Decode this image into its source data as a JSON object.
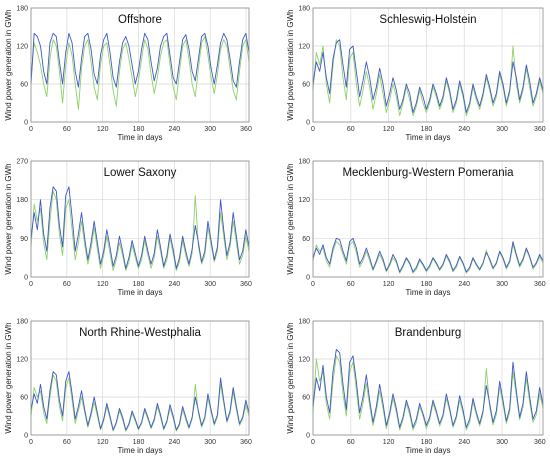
{
  "colors": {
    "series_a": "#3f57c9",
    "series_b": "#8fd16a",
    "series_c": "#e06a6a",
    "grid": "#d9d9d9",
    "axis": "#8c8c8c"
  },
  "chart_data": [
    {
      "type": "line",
      "title": "Offshore",
      "xlabel": "Time in days",
      "ylabel": "Wind power generation in GWh",
      "xlim": [
        0,
        365
      ],
      "ylim": [
        0,
        180
      ],
      "xticks": [
        "0",
        "60",
        "120",
        "180",
        "240",
        "300",
        "360"
      ],
      "yticks": [
        "0",
        "60",
        "120",
        "180"
      ],
      "grid": true,
      "series": [
        {
          "color": "#3f57c9",
          "values": [
            60,
            140,
            135,
            120,
            80,
            60,
            125,
            140,
            135,
            95,
            60,
            110,
            140,
            125,
            80,
            55,
            100,
            135,
            140,
            115,
            75,
            60,
            105,
            130,
            140,
            110,
            70,
            55,
            95,
            125,
            135,
            120,
            90,
            60,
            80,
            115,
            140,
            130,
            95,
            65,
            85,
            120,
            135,
            140,
            105,
            70,
            60,
            95,
            130,
            138,
            115,
            80,
            65,
            100,
            135,
            140,
            120,
            85,
            60,
            90,
            125,
            140,
            130,
            100,
            65,
            55,
            95,
            130,
            140,
            110
          ]
        },
        {
          "color": "#8fd16a",
          "values": [
            70,
            125,
            110,
            90,
            60,
            40,
            100,
            130,
            120,
            80,
            30,
            90,
            125,
            105,
            60,
            20,
            85,
            120,
            130,
            95,
            55,
            35,
            90,
            120,
            125,
            90,
            50,
            25,
            80,
            115,
            125,
            100,
            70,
            40,
            65,
            100,
            130,
            115,
            75,
            45,
            70,
            105,
            125,
            130,
            90,
            55,
            35,
            80,
            120,
            130,
            100,
            60,
            40,
            85,
            125,
            135,
            105,
            70,
            45,
            75,
            115,
            130,
            120,
            85,
            50,
            35,
            80,
            120,
            130,
            95
          ]
        }
      ]
    },
    {
      "type": "line",
      "title": "Schleswig-Holstein",
      "xlabel": "Time in days",
      "ylabel": "Wind power generation in GWh",
      "xlim": [
        0,
        365
      ],
      "ylim": [
        0,
        180
      ],
      "xticks": [
        "0",
        "60",
        "120",
        "180",
        "240",
        "300",
        "360"
      ],
      "yticks": [
        "0",
        "60",
        "120",
        "180"
      ],
      "grid": true,
      "series": [
        {
          "color": "#3f57c9",
          "values": [
            60,
            95,
            80,
            110,
            70,
            45,
            100,
            125,
            130,
            90,
            55,
            115,
            120,
            80,
            40,
            65,
            95,
            70,
            35,
            55,
            85,
            60,
            25,
            45,
            70,
            50,
            20,
            35,
            60,
            45,
            15,
            30,
            55,
            40,
            20,
            35,
            60,
            45,
            25,
            40,
            70,
            50,
            20,
            35,
            65,
            45,
            15,
            30,
            60,
            40,
            25,
            45,
            75,
            55,
            30,
            45,
            80,
            60,
            30,
            50,
            95,
            70,
            35,
            55,
            90,
            65,
            30,
            45,
            70,
            50
          ]
        },
        {
          "color": "#8fd16a",
          "values": [
            50,
            110,
            90,
            120,
            60,
            30,
            90,
            130,
            120,
            70,
            35,
            100,
            110,
            60,
            25,
            50,
            80,
            55,
            20,
            45,
            75,
            45,
            15,
            35,
            60,
            40,
            10,
            30,
            55,
            35,
            10,
            25,
            50,
            30,
            15,
            30,
            55,
            40,
            20,
            35,
            65,
            45,
            15,
            30,
            60,
            40,
            10,
            25,
            55,
            35,
            20,
            40,
            70,
            50,
            25,
            40,
            75,
            55,
            25,
            45,
            120,
            60,
            30,
            50,
            85,
            55,
            25,
            40,
            65,
            45
          ]
        }
      ]
    },
    {
      "type": "line",
      "title": "Lower Saxony",
      "xlabel": "Time in days",
      "ylabel": "Wind power generation in GWh",
      "xlim": [
        0,
        365
      ],
      "ylim": [
        0,
        270
      ],
      "xticks": [
        "0",
        "60",
        "120",
        "180",
        "240",
        "300",
        "360"
      ],
      "yticks": [
        "0",
        "90",
        "180",
        "270"
      ],
      "grid": true,
      "series": [
        {
          "color": "#3f57c9",
          "values": [
            90,
            150,
            110,
            180,
            100,
            60,
            160,
            210,
            200,
            120,
            70,
            190,
            210,
            140,
            60,
            100,
            150,
            90,
            40,
            80,
            130,
            80,
            30,
            60,
            110,
            70,
            25,
            50,
            95,
            60,
            20,
            45,
            85,
            55,
            25,
            50,
            95,
            60,
            30,
            55,
            110,
            70,
            25,
            50,
            100,
            65,
            20,
            45,
            95,
            60,
            30,
            65,
            120,
            80,
            35,
            60,
            130,
            85,
            40,
            70,
            180,
            110,
            50,
            80,
            150,
            95,
            40,
            60,
            110,
            70
          ]
        },
        {
          "color": "#8fd16a",
          "values": [
            70,
            170,
            130,
            160,
            80,
            40,
            130,
            200,
            180,
            100,
            50,
            160,
            180,
            110,
            40,
            80,
            130,
            75,
            30,
            65,
            115,
            65,
            20,
            50,
            95,
            55,
            15,
            40,
            80,
            50,
            15,
            35,
            75,
            45,
            20,
            40,
            85,
            50,
            20,
            45,
            95,
            60,
            20,
            40,
            90,
            55,
            15,
            35,
            85,
            50,
            25,
            55,
            190,
            70,
            30,
            50,
            115,
            75,
            35,
            60,
            150,
            95,
            40,
            70,
            130,
            80,
            30,
            50,
            95,
            60
          ]
        }
      ]
    },
    {
      "type": "line",
      "title": "Mecklenburg-Western Pomerania",
      "xlabel": "Time in days",
      "ylabel": "Wind power generation in GWh",
      "xlim": [
        0,
        365
      ],
      "ylim": [
        0,
        180
      ],
      "xticks": [
        "0",
        "60",
        "120",
        "180",
        "240",
        "300",
        "360"
      ],
      "yticks": [
        "0",
        "60",
        "120",
        "180"
      ],
      "grid": true,
      "series": [
        {
          "color": "#3f57c9",
          "values": [
            30,
            45,
            35,
            50,
            30,
            20,
            45,
            60,
            58,
            40,
            25,
            55,
            60,
            45,
            20,
            30,
            45,
            30,
            12,
            25,
            40,
            28,
            10,
            20,
            35,
            25,
            8,
            18,
            30,
            22,
            8,
            15,
            28,
            20,
            10,
            18,
            30,
            22,
            12,
            20,
            35,
            25,
            10,
            18,
            32,
            22,
            8,
            15,
            30,
            20,
            12,
            22,
            38,
            28,
            14,
            22,
            40,
            30,
            15,
            25,
            55,
            35,
            18,
            28,
            45,
            32,
            15,
            22,
            35,
            25
          ]
        },
        {
          "color": "#8fd16a",
          "values": [
            25,
            50,
            40,
            45,
            25,
            15,
            40,
            55,
            50,
            35,
            20,
            50,
            55,
            38,
            15,
            25,
            40,
            25,
            10,
            22,
            35,
            24,
            8,
            18,
            30,
            22,
            6,
            15,
            28,
            20,
            6,
            12,
            25,
            18,
            8,
            15,
            28,
            20,
            10,
            18,
            32,
            22,
            8,
            15,
            30,
            20,
            6,
            12,
            28,
            18,
            10,
            20,
            42,
            25,
            12,
            20,
            38,
            28,
            12,
            22,
            50,
            32,
            15,
            25,
            42,
            30,
            12,
            20,
            32,
            22
          ]
        }
      ]
    },
    {
      "type": "line",
      "title": "North Rhine-Westphalia",
      "xlabel": "Time in days",
      "ylabel": "Wind power generation in GWh",
      "xlim": [
        0,
        365
      ],
      "ylim": [
        0,
        180
      ],
      "xticks": [
        "0",
        "60",
        "120",
        "180",
        "240",
        "300",
        "360"
      ],
      "yticks": [
        "0",
        "60",
        "120",
        "180"
      ],
      "grid": true,
      "series": [
        {
          "color": "#3f57c9",
          "values": [
            40,
            65,
            50,
            80,
            45,
            25,
            70,
            100,
            95,
            55,
            30,
            85,
            100,
            65,
            25,
            45,
            70,
            40,
            15,
            35,
            60,
            35,
            10,
            25,
            50,
            30,
            8,
            20,
            42,
            28,
            8,
            18,
            38,
            25,
            10,
            20,
            42,
            28,
            12,
            25,
            50,
            32,
            10,
            22,
            48,
            30,
            8,
            18,
            45,
            28,
            12,
            28,
            60,
            38,
            15,
            28,
            65,
            40,
            18,
            32,
            90,
            55,
            22,
            38,
            75,
            45,
            18,
            28,
            55,
            35
          ]
        },
        {
          "color": "#8fd16a",
          "values": [
            30,
            75,
            60,
            70,
            35,
            18,
            60,
            95,
            85,
            45,
            22,
            75,
            90,
            55,
            18,
            38,
            60,
            35,
            12,
            30,
            52,
            30,
            8,
            22,
            45,
            26,
            6,
            18,
            38,
            24,
            6,
            15,
            34,
            22,
            8,
            18,
            38,
            25,
            10,
            22,
            45,
            28,
            8,
            20,
            42,
            26,
            6,
            15,
            40,
            24,
            10,
            25,
            80,
            34,
            12,
            25,
            58,
            36,
            15,
            28,
            80,
            50,
            20,
            34,
            68,
            40,
            15,
            25,
            48,
            30
          ]
        }
      ]
    },
    {
      "type": "line",
      "title": "Brandenburg",
      "xlabel": "Time in days",
      "ylabel": "Wind power generation in GWh",
      "xlim": [
        0,
        365
      ],
      "ylim": [
        0,
        180
      ],
      "xticks": [
        "0",
        "60",
        "120",
        "180",
        "240",
        "300",
        "360"
      ],
      "yticks": [
        "0",
        "60",
        "120",
        "180"
      ],
      "grid": true,
      "series": [
        {
          "color": "#3f57c9",
          "values": [
            45,
            90,
            70,
            110,
            60,
            35,
            100,
            135,
            130,
            80,
            40,
            115,
            125,
            85,
            35,
            60,
            95,
            55,
            20,
            45,
            80,
            50,
            15,
            35,
            65,
            42,
            12,
            28,
            55,
            38,
            12,
            25,
            50,
            34,
            15,
            28,
            55,
            38,
            18,
            32,
            65,
            42,
            15,
            30,
            62,
            40,
            12,
            25,
            58,
            36,
            18,
            38,
            78,
            50,
            20,
            38,
            85,
            55,
            22,
            42,
            115,
            70,
            28,
            50,
            100,
            60,
            25,
            38,
            75,
            48
          ]
        },
        {
          "color": "#8fd16a",
          "values": [
            35,
            120,
            85,
            100,
            50,
            25,
            85,
            125,
            115,
            65,
            30,
            100,
            115,
            72,
            25,
            50,
            82,
            46,
            15,
            38,
            70,
            42,
            10,
            30,
            58,
            36,
            8,
            24,
            50,
            32,
            8,
            20,
            45,
            30,
            10,
            24,
            50,
            34,
            14,
            28,
            58,
            38,
            12,
            26,
            55,
            35,
            8,
            20,
            52,
            32,
            14,
            34,
            105,
            44,
            16,
            32,
            76,
            48,
            18,
            36,
            100,
            62,
            24,
            44,
            90,
            52,
            20,
            32,
            66,
            42
          ]
        }
      ]
    }
  ]
}
